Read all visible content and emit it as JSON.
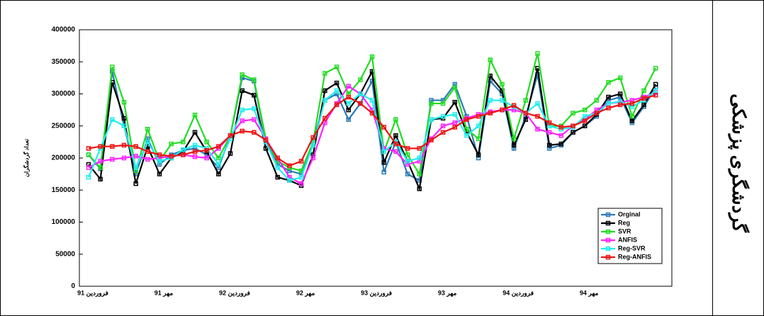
{
  "side_label": "گردشگری پزشکی",
  "chart_data": {
    "type": "line",
    "ylabel": "تعداد گردشگران",
    "categories": [
      "فروردین 91",
      null,
      null,
      null,
      null,
      null,
      "مهر 91",
      null,
      null,
      null,
      null,
      null,
      "فروردین 92",
      null,
      null,
      null,
      null,
      null,
      "مهر 92",
      null,
      null,
      null,
      null,
      null,
      "فروردین 93",
      null,
      null,
      null,
      null,
      null,
      "مهر 93",
      null,
      null,
      null,
      null,
      null,
      "فروردین 94",
      null,
      null,
      null,
      null,
      null,
      "مهر 94",
      null,
      null,
      null,
      null,
      null,
      null
    ],
    "ylim": [
      0,
      400000
    ],
    "yticks": [
      0,
      50000,
      100000,
      150000,
      200000,
      250000,
      300000,
      350000,
      400000
    ],
    "legend": "lower right",
    "series": [
      {
        "name": "Orginal",
        "color": "#2a7ab8",
        "values": [
          205000,
          183000,
          335000,
          250000,
          175000,
          230000,
          190000,
          205000,
          212000,
          215000,
          205000,
          185000,
          235000,
          325000,
          320000,
          225000,
          190000,
          180000,
          175000,
          225000,
          290000,
          300000,
          260000,
          285000,
          320000,
          178000,
          225000,
          175000,
          165000,
          290000,
          290000,
          315000,
          265000,
          200000,
          320000,
          300000,
          215000,
          265000,
          330000,
          215000,
          220000,
          240000,
          250000,
          265000,
          290000,
          295000,
          255000,
          280000,
          310000
        ]
      },
      {
        "name": "Reg",
        "color": "#000000",
        "values": [
          190000,
          167000,
          318000,
          262000,
          160000,
          218000,
          175000,
          200000,
          210000,
          240000,
          210000,
          175000,
          207000,
          305000,
          298000,
          215000,
          170000,
          165000,
          157000,
          205000,
          305000,
          317000,
          275000,
          300000,
          335000,
          193000,
          235000,
          195000,
          152000,
          260000,
          262000,
          287000,
          240000,
          205000,
          328000,
          305000,
          220000,
          260000,
          340000,
          220000,
          222000,
          240000,
          250000,
          268000,
          295000,
          300000,
          258000,
          283000,
          315000
        ]
      },
      {
        "name": "SVR",
        "color": "#22dd22",
        "values": [
          205000,
          185000,
          342000,
          287000,
          180000,
          245000,
          195000,
          222000,
          225000,
          267000,
          225000,
          200000,
          235000,
          330000,
          322000,
          230000,
          195000,
          185000,
          180000,
          225000,
          332000,
          342000,
          300000,
          322000,
          358000,
          210000,
          260000,
          205000,
          175000,
          285000,
          285000,
          310000,
          245000,
          230000,
          353000,
          315000,
          230000,
          290000,
          363000,
          250000,
          250000,
          270000,
          275000,
          290000,
          318000,
          325000,
          265000,
          305000,
          340000
        ]
      },
      {
        "name": "ANFIS",
        "color": "#ff22ff",
        "values": [
          185000,
          195000,
          198000,
          200000,
          203000,
          198000,
          200000,
          203000,
          205000,
          202000,
          200000,
          215000,
          235000,
          258000,
          260000,
          230000,
          200000,
          170000,
          160000,
          200000,
          255000,
          285000,
          312000,
          300000,
          275000,
          215000,
          210000,
          190000,
          195000,
          230000,
          250000,
          255000,
          262000,
          268000,
          272000,
          275000,
          275000,
          270000,
          245000,
          240000,
          235000,
          250000,
          260000,
          275000,
          285000,
          287000,
          290000,
          295000,
          302000
        ]
      },
      {
        "name": "Reg-SVR",
        "color": "#22eeee",
        "values": [
          170000,
          215000,
          260000,
          250000,
          185000,
          225000,
          195000,
          200000,
          213000,
          220000,
          215000,
          190000,
          230000,
          275000,
          277000,
          225000,
          185000,
          165000,
          170000,
          220000,
          290000,
          305000,
          285000,
          300000,
          290000,
          210000,
          225000,
          195000,
          200000,
          260000,
          265000,
          268000,
          235000,
          250000,
          290000,
          290000,
          280000,
          270000,
          285000,
          250000,
          245000,
          248000,
          265000,
          270000,
          285000,
          288000,
          280000,
          290000,
          305000
        ]
      },
      {
        "name": "Reg-ANFIS",
        "color": "#ee1111",
        "values": [
          215000,
          218000,
          218000,
          220000,
          218000,
          210000,
          205000,
          203000,
          205000,
          210000,
          212000,
          218000,
          235000,
          242000,
          240000,
          228000,
          200000,
          188000,
          195000,
          232000,
          262000,
          283000,
          295000,
          285000,
          270000,
          248000,
          222000,
          215000,
          215000,
          228000,
          240000,
          248000,
          260000,
          265000,
          270000,
          275000,
          282000,
          270000,
          265000,
          255000,
          248000,
          250000,
          258000,
          270000,
          278000,
          283000,
          285000,
          293000,
          298000
        ]
      }
    ]
  }
}
